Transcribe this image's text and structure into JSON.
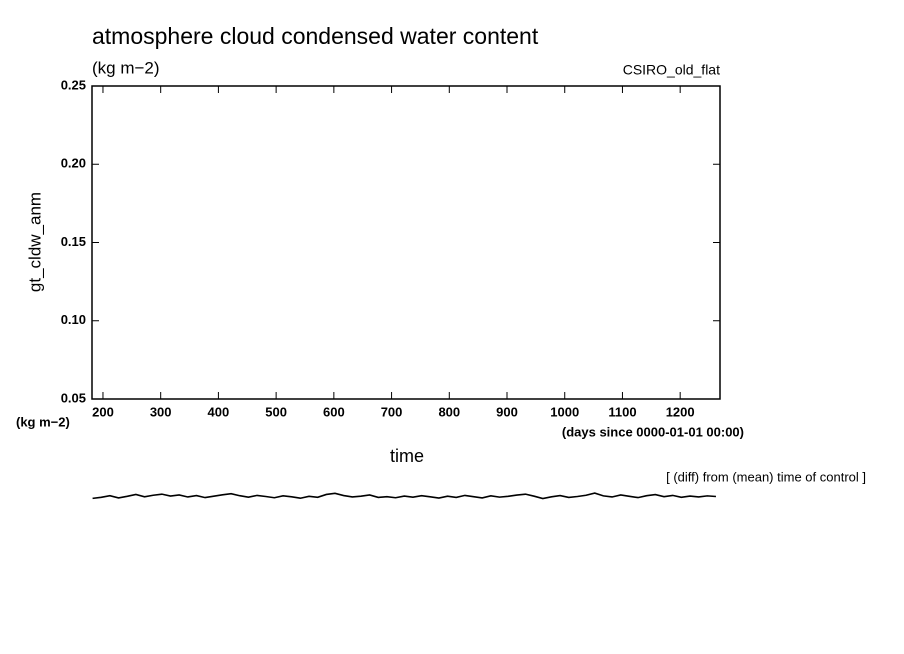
{
  "chart_data": {
    "type": "line",
    "title": "atmosphere cloud condensed water content",
    "subtitle": "(kg m−2)",
    "source_label": "CSIRO_old_flat",
    "y_label": "gt_cldw_anm",
    "y_unit": "(kg m−2)",
    "x_label": "time",
    "x_unit": "(days since 0000-01-01 00:00)",
    "annotation": "[ (diff) from (mean) time of control ]",
    "xlim": [
      181,
      1269
    ],
    "xticks": [
      200,
      300,
      400,
      500,
      600,
      700,
      800,
      900,
      1000,
      1100,
      1200
    ],
    "ylim": [
      0.05,
      0.25
    ],
    "yticks": [
      0.05,
      {
        "value": 0.1,
        "label": "0.10"
      },
      0.15,
      {
        "value": 0.2,
        "label": "0.20"
      },
      0.25
    ],
    "series": [
      {
        "color": "#000000",
        "x": [
          182,
          197,
          212,
          227,
          242,
          257,
          272,
          287,
          302,
          317,
          332,
          347,
          362,
          377,
          392,
          407,
          422,
          437,
          452,
          467,
          482,
          497,
          512,
          527,
          542,
          557,
          572,
          587,
          602,
          617,
          632,
          647,
          662,
          677,
          692,
          707,
          722,
          737,
          752,
          767,
          782,
          797,
          812,
          827,
          842,
          857,
          872,
          887,
          902,
          917,
          932,
          947,
          962,
          977,
          992,
          1007,
          1022,
          1037,
          1052,
          1067,
          1082,
          1097,
          1112,
          1127,
          1142,
          1157,
          1172,
          1187,
          1202,
          1217,
          1232,
          1247,
          1262
        ],
        "values": [
          -0.0135,
          -0.0128,
          -0.0118,
          -0.0132,
          -0.0122,
          -0.011,
          -0.0125,
          -0.0115,
          -0.0108,
          -0.012,
          -0.0113,
          -0.0126,
          -0.0117,
          -0.013,
          -0.0121,
          -0.0112,
          -0.0105,
          -0.0118,
          -0.0127,
          -0.0116,
          -0.0123,
          -0.0131,
          -0.0119,
          -0.0125,
          -0.0134,
          -0.0122,
          -0.0128,
          -0.011,
          -0.0103,
          -0.0117,
          -0.0126,
          -0.0121,
          -0.0113,
          -0.0129,
          -0.0124,
          -0.0131,
          -0.012,
          -0.0127,
          -0.0118,
          -0.0125,
          -0.0133,
          -0.0121,
          -0.0129,
          -0.0116,
          -0.0124,
          -0.0132,
          -0.0119,
          -0.0127,
          -0.0122,
          -0.0114,
          -0.0108,
          -0.0121,
          -0.0136,
          -0.0125,
          -0.0117,
          -0.0129,
          -0.0123,
          -0.0115,
          -0.0101,
          -0.0119,
          -0.0126,
          -0.0113,
          -0.0122,
          -0.013,
          -0.0118,
          -0.0111,
          -0.0124,
          -0.0116,
          -0.0128,
          -0.012,
          -0.0126,
          -0.0119,
          -0.0123
        ]
      }
    ]
  }
}
